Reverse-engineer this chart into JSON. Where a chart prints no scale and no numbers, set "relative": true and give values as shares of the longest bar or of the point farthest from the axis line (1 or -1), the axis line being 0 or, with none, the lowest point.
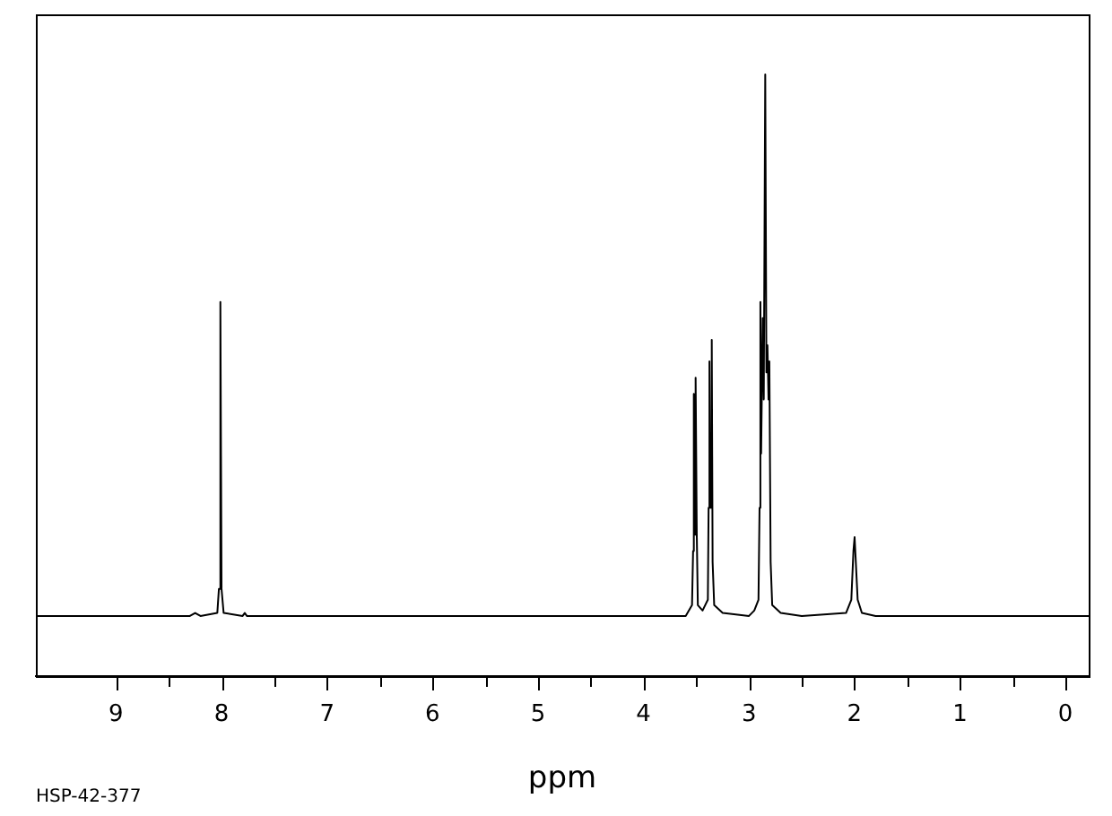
{
  "chart_data": {
    "type": "line",
    "relative": true,
    "xlabel": "ppm",
    "annotations": [
      "HSP-42-377"
    ],
    "xlim": [
      9.76,
      -0.22
    ],
    "xticks": [
      9,
      {
        "value": 8.5,
        "label": null
      },
      8,
      {
        "value": 7.5,
        "label": null
      },
      7,
      {
        "value": 6.5,
        "label": null
      },
      6,
      {
        "value": 5.5,
        "label": null
      },
      5,
      {
        "value": 4.5,
        "label": null
      },
      4,
      {
        "value": 3.5,
        "label": null
      },
      3,
      {
        "value": 2.5,
        "label": null
      },
      2,
      {
        "value": 1.5,
        "label": null
      },
      1,
      {
        "value": 0.5,
        "label": null
      },
      0
    ],
    "grid": false,
    "legend": false,
    "marker": "none",
    "line_style": "solid",
    "series": [
      {
        "color": "#000000",
        "x": [
          9.76,
          8.3,
          8.25,
          8.2,
          8.04,
          8.025,
          8.011,
          8.0,
          7.98,
          7.8,
          7.78,
          7.76,
          3.6,
          3.54,
          3.53,
          3.523,
          3.515,
          3.506,
          3.495,
          3.485,
          3.44,
          3.39,
          3.383,
          3.375,
          3.365,
          3.353,
          3.345,
          3.33,
          3.25,
          3.0,
          2.95,
          2.91,
          2.9,
          2.892,
          2.885,
          2.87,
          2.86,
          2.846,
          2.835,
          2.825,
          2.815,
          2.807,
          2.795,
          2.78,
          2.7,
          2.5,
          2.08,
          2.03,
          2.01,
          1.999,
          1.99,
          1.97,
          1.93,
          1.8,
          -0.22
        ],
        "values": [
          0.1,
          0.1,
          0.105,
          0.1,
          0.105,
          0.145,
          0.622,
          0.145,
          0.105,
          0.1,
          0.105,
          0.1,
          0.1,
          0.118,
          0.208,
          0.469,
          0.235,
          0.496,
          0.235,
          0.118,
          0.109,
          0.127,
          0.28,
          0.523,
          0.28,
          0.559,
          0.19,
          0.118,
          0.105,
          0.1,
          0.109,
          0.127,
          0.28,
          0.622,
          0.37,
          0.595,
          0.46,
          1.0,
          0.505,
          0.55,
          0.46,
          0.523,
          0.19,
          0.118,
          0.105,
          0.1,
          0.105,
          0.127,
          0.208,
          0.231,
          0.199,
          0.127,
          0.105,
          0.1,
          0.1
        ]
      }
    ]
  }
}
